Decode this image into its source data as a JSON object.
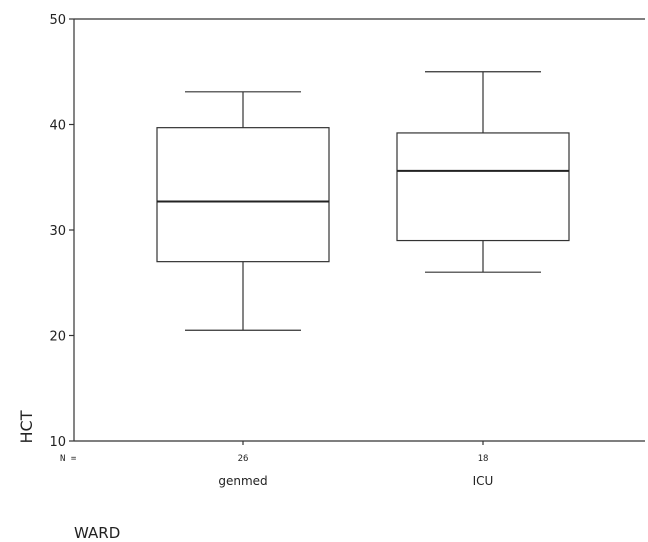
{
  "chart_data": {
    "type": "boxplot",
    "ylabel": "HCT",
    "xlabel": "WARD",
    "n_prefix": "N =",
    "ylim": [
      10,
      50
    ],
    "yticks": [
      10,
      20,
      30,
      40,
      50
    ],
    "grid": false,
    "categories": [
      "genmed",
      "ICU"
    ],
    "counts": [
      "26",
      "18"
    ],
    "boxes": [
      {
        "category": "genmed",
        "n": 26,
        "whisker_low": 20.5,
        "q1": 27.0,
        "median": 32.7,
        "q3": 39.7,
        "whisker_high": 43.1
      },
      {
        "category": "ICU",
        "n": 18,
        "whisker_low": 26.0,
        "q1": 29.0,
        "median": 35.6,
        "q3": 39.2,
        "whisker_high": 45.0
      }
    ]
  }
}
